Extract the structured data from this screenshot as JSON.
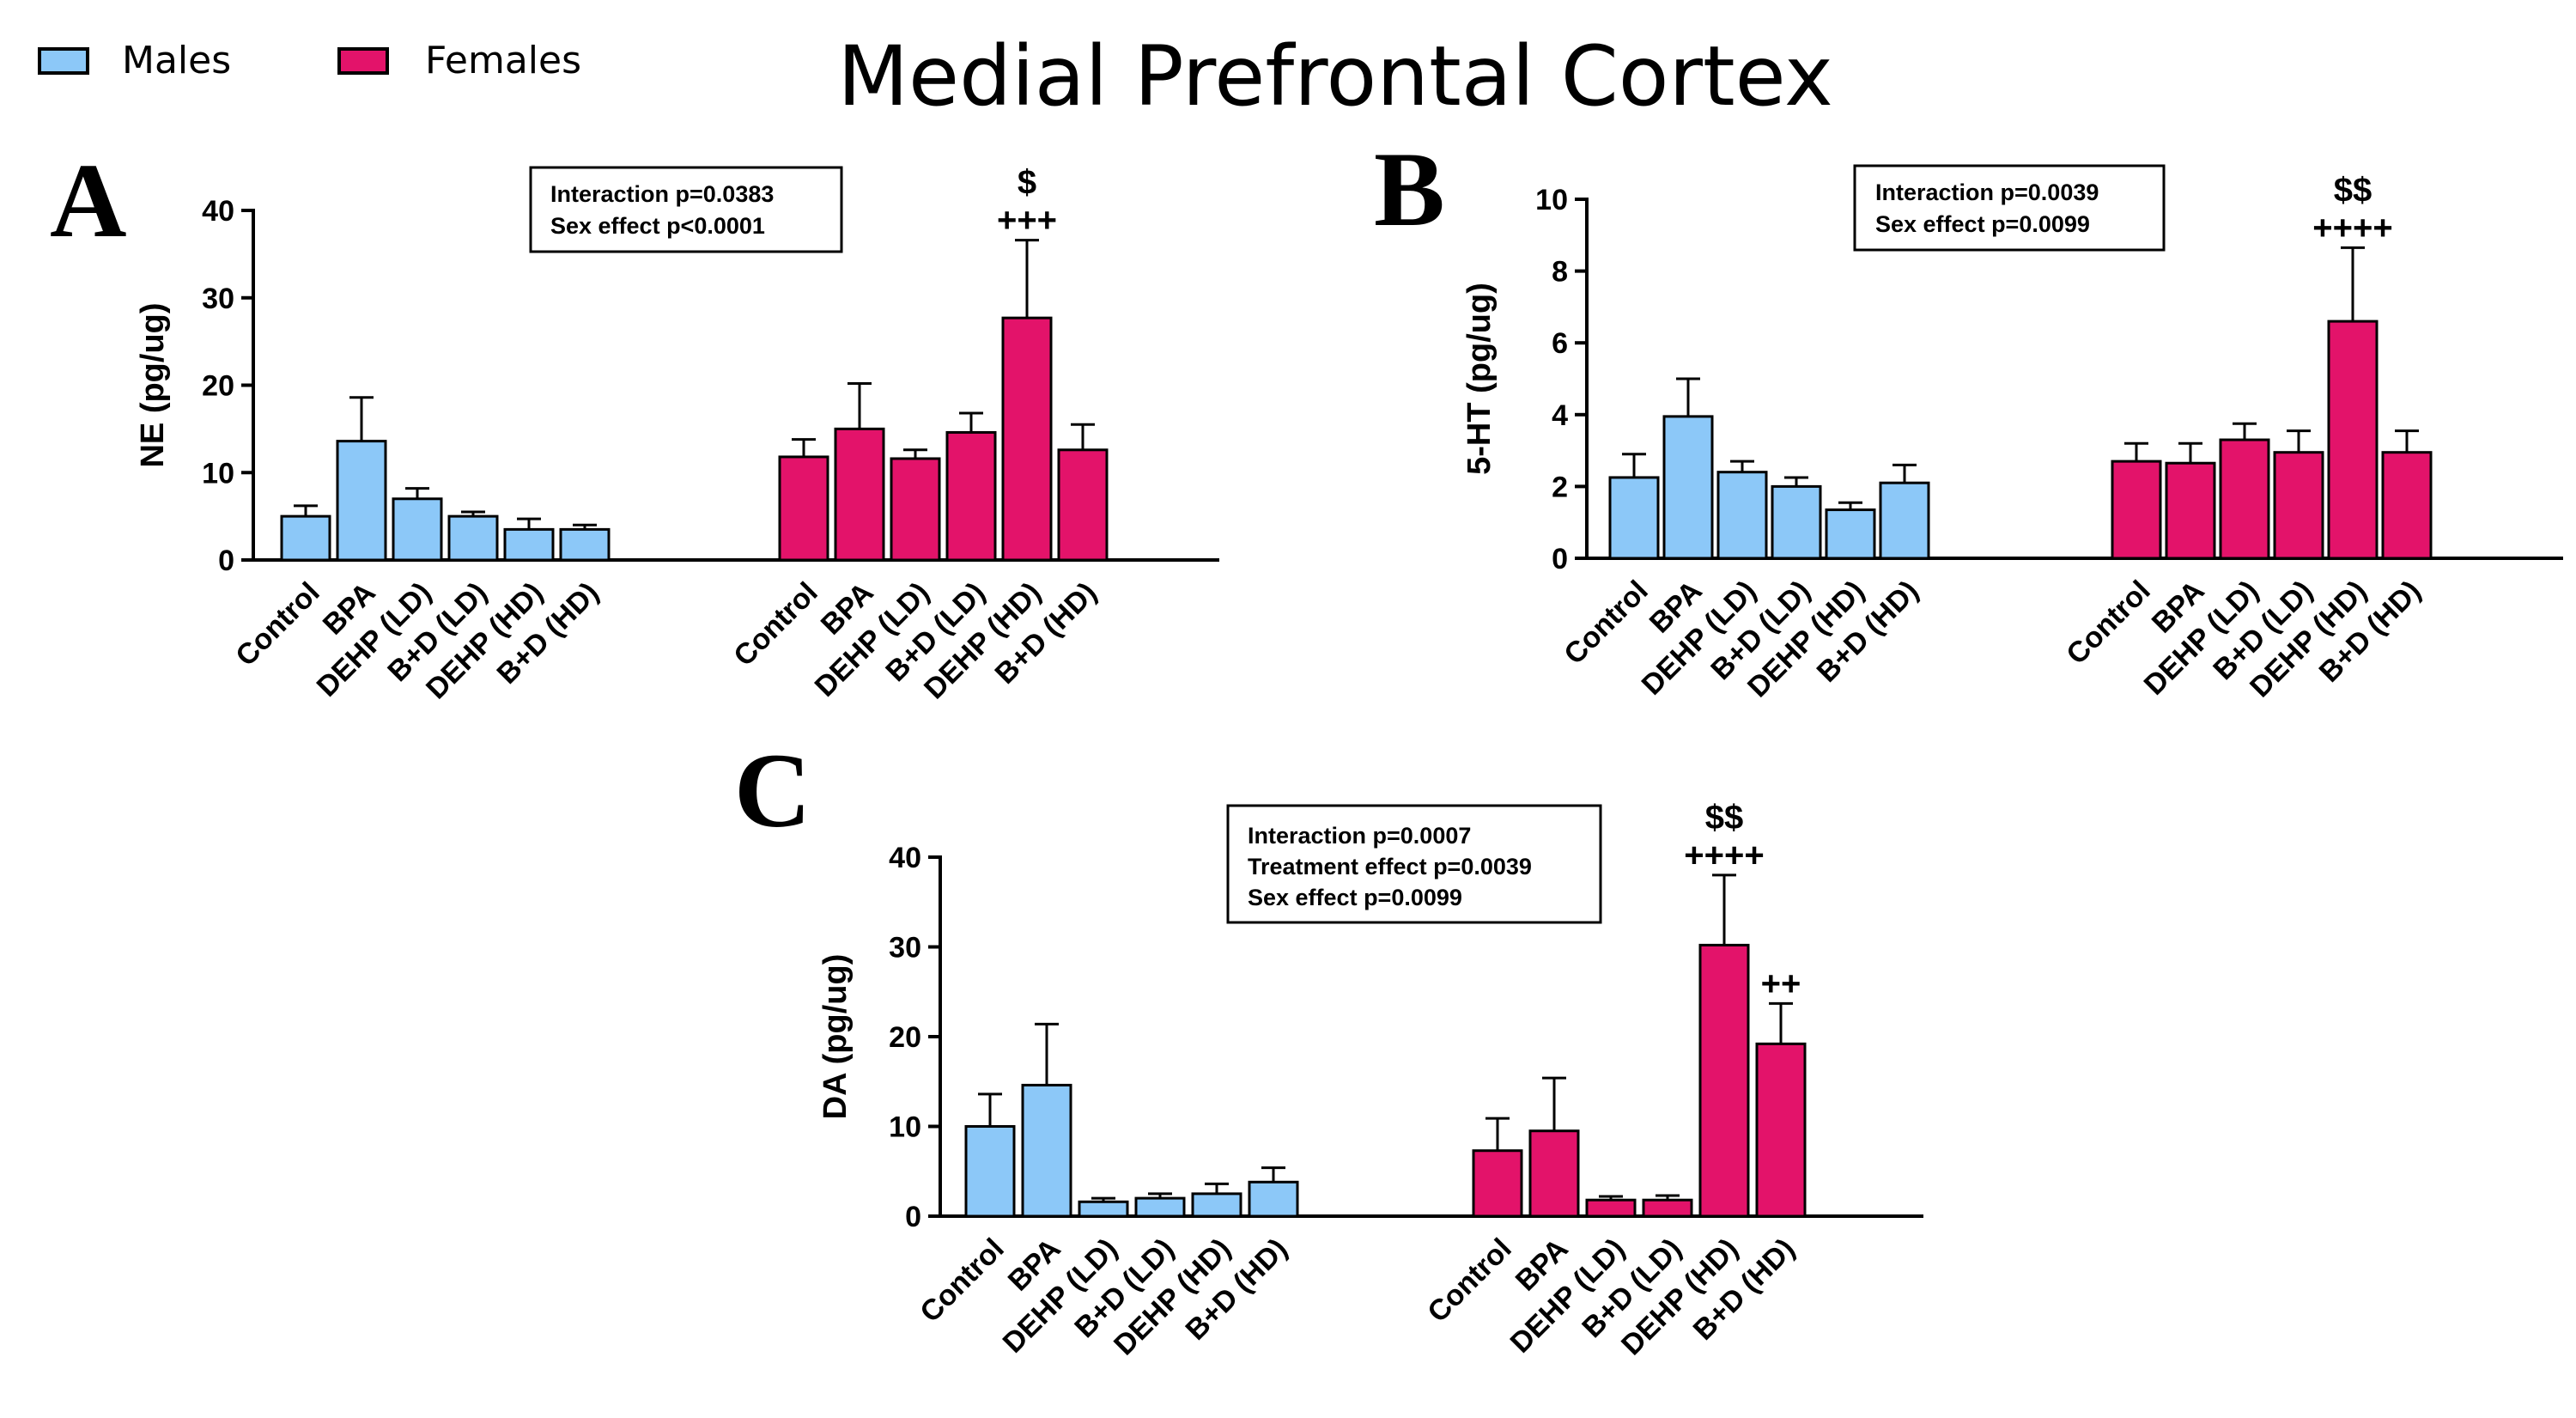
{
  "figure_title": "Medial Prefrontal Cortex",
  "legend": [
    {
      "label": "Males",
      "color": "#8cc8f8"
    },
    {
      "label": "Females",
      "color": "#e3136a"
    }
  ],
  "colors": {
    "males": "#8cc8f8",
    "females": "#e3136a",
    "axis": "#000000"
  },
  "chart_data": [
    {
      "panel": "A",
      "type": "bar",
      "ylabel": "NE (pg/ug)",
      "ylim": [
        0,
        40
      ],
      "yticks": [
        0,
        10,
        20,
        30,
        40
      ],
      "categories": [
        "Control",
        "BPA",
        "DEHP (LD)",
        "B+D (LD)",
        "DEHP (HD)",
        "B+D (HD)"
      ],
      "stats": [
        "Interaction p=0.0383",
        "Sex effect p<0.0001"
      ],
      "series": [
        {
          "name": "Males",
          "values": [
            5,
            13.6,
            7,
            5,
            3.5,
            3.5
          ],
          "errors": [
            1.2,
            5,
            1.2,
            0.5,
            1.2,
            0.5
          ],
          "marks": [
            "",
            "",
            "",
            "",
            "",
            ""
          ]
        },
        {
          "name": "Females",
          "values": [
            11.8,
            15,
            11.6,
            14.6,
            27.7,
            12.6
          ],
          "errors": [
            2,
            5.2,
            1,
            2.2,
            8.9,
            2.9
          ],
          "marks": [
            "",
            "",
            "",
            "",
            "+++|$",
            ""
          ]
        }
      ]
    },
    {
      "panel": "B",
      "type": "bar",
      "ylabel": "5-HT (pg/ug)",
      "ylim": [
        0,
        10
      ],
      "yticks": [
        0,
        2,
        4,
        6,
        8,
        10
      ],
      "categories": [
        "Control",
        "BPA",
        "DEHP (LD)",
        "B+D (LD)",
        "DEHP (HD)",
        "B+D (HD)"
      ],
      "stats": [
        "Interaction p=0.0039",
        "Sex effect p=0.0099"
      ],
      "series": [
        {
          "name": "Males",
          "values": [
            2.25,
            3.95,
            2.4,
            2,
            1.35,
            2.1
          ],
          "errors": [
            0.65,
            1.05,
            0.3,
            0.25,
            0.2,
            0.5
          ],
          "marks": [
            "",
            "",
            "",
            "",
            "",
            ""
          ]
        },
        {
          "name": "Females",
          "values": [
            2.7,
            2.65,
            3.3,
            2.95,
            6.6,
            2.95
          ],
          "errors": [
            0.5,
            0.55,
            0.45,
            0.6,
            2.05,
            0.6
          ],
          "marks": [
            "",
            "",
            "",
            "",
            "++++|$$",
            ""
          ]
        }
      ]
    },
    {
      "panel": "C",
      "type": "bar",
      "ylabel": "DA (pg/ug)",
      "ylim": [
        0,
        40
      ],
      "yticks": [
        0,
        10,
        20,
        30,
        40
      ],
      "categories": [
        "Control",
        "BPA",
        "DEHP (LD)",
        "B+D (LD)",
        "DEHP (HD)",
        "B+D (HD)"
      ],
      "stats": [
        "Interaction p=0.0007",
        "Treatment effect p=0.0039",
        "Sex effect p=0.0099"
      ],
      "series": [
        {
          "name": "Males",
          "values": [
            10,
            14.6,
            1.6,
            2,
            2.5,
            3.8
          ],
          "errors": [
            3.6,
            6.8,
            0.4,
            0.5,
            1.1,
            1.6
          ],
          "marks": [
            "",
            "",
            "",
            "",
            "",
            ""
          ]
        },
        {
          "name": "Females",
          "values": [
            7.3,
            9.5,
            1.8,
            1.8,
            30.2,
            19.2
          ],
          "errors": [
            3.6,
            5.9,
            0.4,
            0.5,
            7.8,
            4.5
          ],
          "marks": [
            "",
            "",
            "",
            "",
            "++++|$$",
            "++"
          ]
        }
      ]
    }
  ]
}
